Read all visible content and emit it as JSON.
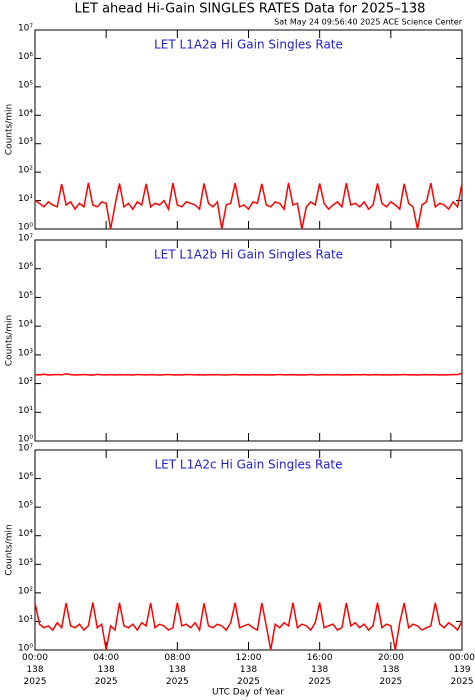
{
  "title": "LET ahead Hi-Gain SINGLES RATES Data for 2025–138",
  "subtitle": "Sat May 24 09:56:40 2025 ACE Science Center",
  "x_label": "UTC Day of Year",
  "chart_data": [
    {
      "type": "line",
      "title": "LET L1A2a Hi Gain Singles Rate",
      "y_label": "Counts/min",
      "log_scale": true,
      "xlim": [
        0,
        24
      ],
      "xticks": [
        0,
        4,
        8,
        12,
        16,
        20,
        24
      ],
      "ylim": [
        1,
        10000000
      ],
      "yticks": [
        {
          "value": 1,
          "label": "10⁰"
        },
        {
          "value": 10,
          "label": "10¹"
        },
        {
          "value": 100,
          "label": "10²"
        },
        {
          "value": 1000,
          "label": "10³"
        },
        {
          "value": 10000,
          "label": "10⁴"
        },
        {
          "value": 100000,
          "label": "10⁵"
        },
        {
          "value": 1000000,
          "label": "10⁶"
        },
        {
          "value": 10000000,
          "label": "10⁷"
        }
      ],
      "x": [
        0,
        0.25,
        0.5,
        0.75,
        1,
        1.25,
        1.5,
        1.75,
        2,
        2.25,
        2.5,
        2.75,
        3,
        3.25,
        3.5,
        3.75,
        4,
        4.25,
        4.5,
        4.75,
        5,
        5.25,
        5.5,
        5.75,
        6,
        6.25,
        6.5,
        6.75,
        7,
        7.25,
        7.5,
        7.75,
        8,
        8.25,
        8.5,
        8.75,
        9,
        9.25,
        9.5,
        9.75,
        10,
        10.25,
        10.5,
        10.75,
        11,
        11.25,
        11.5,
        11.75,
        12,
        12.25,
        12.5,
        12.75,
        13,
        13.25,
        13.5,
        13.75,
        14,
        14.25,
        14.5,
        14.75,
        15,
        15.25,
        15.5,
        15.75,
        16,
        16.25,
        16.5,
        16.75,
        17,
        17.25,
        17.5,
        17.75,
        18,
        18.25,
        18.5,
        18.75,
        19,
        19.25,
        19.5,
        19.75,
        20,
        20.25,
        20.5,
        20.75,
        21,
        21.25,
        21.5,
        21.75,
        22,
        22.25,
        22.5,
        22.75,
        23,
        23.25,
        23.5,
        23.75,
        24
      ],
      "series": [
        {
          "color": "#ff0000",
          "values": [
            10,
            8,
            6,
            9,
            7,
            6,
            38,
            7,
            9,
            5,
            8,
            6,
            42,
            7,
            6,
            9,
            8,
            1,
            7,
            40,
            6,
            8,
            5,
            9,
            7,
            39,
            6,
            8,
            7,
            10,
            5,
            41,
            7,
            6,
            9,
            8,
            7,
            5,
            40,
            8,
            6,
            9,
            1,
            7,
            8,
            41,
            6,
            7,
            5,
            9,
            8,
            39,
            7,
            6,
            9,
            8,
            5,
            42,
            7,
            8,
            1,
            6,
            9,
            7,
            40,
            8,
            5,
            7,
            9,
            6,
            41,
            7,
            8,
            6,
            9,
            5,
            7,
            40,
            8,
            6,
            9,
            7,
            5,
            39,
            8,
            6,
            1,
            7,
            9,
            41,
            6,
            8,
            7,
            5,
            9,
            6,
            40
          ]
        }
      ]
    },
    {
      "type": "line",
      "title": "LET L1A2b Hi Gain Singles Rate",
      "y_label": "Counts/min",
      "log_scale": true,
      "xlim": [
        0,
        24
      ],
      "xticks": [
        0,
        4,
        8,
        12,
        16,
        20,
        24
      ],
      "ylim": [
        1,
        10000000
      ],
      "yticks": [
        {
          "value": 1,
          "label": "10⁰"
        },
        {
          "value": 10,
          "label": "10¹"
        },
        {
          "value": 100,
          "label": "10²"
        },
        {
          "value": 1000,
          "label": "10³"
        },
        {
          "value": 10000,
          "label": "10⁴"
        },
        {
          "value": 100000,
          "label": "10⁵"
        },
        {
          "value": 1000000,
          "label": "10⁶"
        },
        {
          "value": 10000000,
          "label": "10⁷"
        }
      ],
      "x": [
        0,
        0.25,
        0.5,
        0.75,
        1,
        1.25,
        1.5,
        1.75,
        2,
        2.25,
        2.5,
        2.75,
        3,
        3.25,
        3.5,
        3.75,
        4,
        4.25,
        4.5,
        4.75,
        5,
        5.25,
        5.5,
        5.75,
        6,
        6.25,
        6.5,
        6.75,
        7,
        7.25,
        7.5,
        7.75,
        8,
        8.25,
        8.5,
        8.75,
        9,
        9.25,
        9.5,
        9.75,
        10,
        10.25,
        10.5,
        10.75,
        11,
        11.25,
        11.5,
        11.75,
        12,
        12.25,
        12.5,
        12.75,
        13,
        13.25,
        13.5,
        13.75,
        14,
        14.25,
        14.5,
        14.75,
        15,
        15.25,
        15.5,
        15.75,
        16,
        16.25,
        16.5,
        16.75,
        17,
        17.25,
        17.5,
        17.75,
        18,
        18.25,
        18.5,
        18.75,
        19,
        19.25,
        19.5,
        19.75,
        20,
        20.25,
        20.5,
        20.75,
        21,
        21.25,
        21.5,
        21.75,
        22,
        22.25,
        22.5,
        22.75,
        23,
        23.25,
        23.5,
        23.75,
        24
      ],
      "series": [
        {
          "color": "#ff0000",
          "values": [
            205,
            200,
            210,
            198,
            203,
            207,
            201,
            220,
            204,
            199,
            202,
            206,
            200,
            197,
            208,
            203,
            201,
            205,
            199,
            204,
            200,
            203,
            198,
            207,
            202,
            200,
            205,
            201,
            199,
            203,
            207,
            200,
            202,
            198,
            206,
            204,
            200,
            203,
            199,
            205,
            201,
            204,
            200,
            198,
            203,
            206,
            201,
            202,
            199,
            204,
            200,
            205,
            198,
            203,
            201,
            207,
            200,
            202,
            204,
            199,
            203,
            200,
            206,
            201,
            198,
            204,
            202,
            200,
            205,
            199,
            203,
            201,
            204,
            200,
            207,
            199,
            202,
            205,
            200,
            203,
            198,
            204,
            201,
            206,
            200,
            203,
            199,
            202,
            205,
            200,
            204,
            198,
            203,
            201,
            206,
            205,
            230
          ]
        }
      ]
    },
    {
      "type": "line",
      "title": "LET L1A2c Hi Gain Singles Rate",
      "y_label": "Counts/min",
      "log_scale": true,
      "xlim": [
        0,
        24
      ],
      "xticks": [
        {
          "value": 0,
          "label": "00:00\n138\n2025"
        },
        {
          "value": 4,
          "label": "04:00\n138\n2025"
        },
        {
          "value": 8,
          "label": "08:00\n138\n2025"
        },
        {
          "value": 12,
          "label": "12:00\n138\n2025"
        },
        {
          "value": 16,
          "label": "16:00\n138\n2025"
        },
        {
          "value": 20,
          "label": "20:00\n138\n2025"
        },
        {
          "value": 24,
          "label": "00:00\n139\n2025"
        }
      ],
      "ylim": [
        1,
        10000000
      ],
      "yticks": [
        {
          "value": 1,
          "label": "10⁰"
        },
        {
          "value": 10,
          "label": "10¹"
        },
        {
          "value": 100,
          "label": "10²"
        },
        {
          "value": 1000,
          "label": "10³"
        },
        {
          "value": 10000,
          "label": "10⁴"
        },
        {
          "value": 100000,
          "label": "10⁵"
        },
        {
          "value": 1000000,
          "label": "10⁶"
        },
        {
          "value": 10000000,
          "label": "10⁷"
        }
      ],
      "x": [
        0,
        0.25,
        0.5,
        0.75,
        1,
        1.25,
        1.5,
        1.75,
        2,
        2.25,
        2.5,
        2.75,
        3,
        3.25,
        3.5,
        3.75,
        4,
        4.25,
        4.5,
        4.75,
        5,
        5.25,
        5.5,
        5.75,
        6,
        6.25,
        6.5,
        6.75,
        7,
        7.25,
        7.5,
        7.75,
        8,
        8.25,
        8.5,
        8.75,
        9,
        9.25,
        9.5,
        9.75,
        10,
        10.25,
        10.5,
        10.75,
        11,
        11.25,
        11.5,
        11.75,
        12,
        12.25,
        12.5,
        12.75,
        13,
        13.25,
        13.5,
        13.75,
        14,
        14.25,
        14.5,
        14.75,
        15,
        15.25,
        15.5,
        15.75,
        16,
        16.25,
        16.5,
        16.75,
        17,
        17.25,
        17.5,
        17.75,
        18,
        18.25,
        18.5,
        18.75,
        19,
        19.25,
        19.5,
        19.75,
        20,
        20.25,
        20.5,
        20.75,
        21,
        21.25,
        21.5,
        21.75,
        22,
        22.25,
        22.5,
        22.75,
        23,
        23.25,
        23.5,
        23.75,
        24
      ],
      "series": [
        {
          "color": "#ff0000",
          "values": [
            45,
            8,
            6,
            7,
            5,
            9,
            6,
            44,
            7,
            6,
            8,
            5,
            7,
            46,
            6,
            8,
            1,
            7,
            5,
            45,
            7,
            6,
            8,
            5,
            9,
            7,
            44,
            6,
            8,
            7,
            5,
            6,
            45,
            7,
            8,
            6,
            9,
            5,
            43,
            7,
            6,
            8,
            7,
            5,
            9,
            45,
            6,
            7,
            8,
            6,
            5,
            44,
            7,
            1,
            8,
            6,
            9,
            7,
            45,
            6,
            8,
            7,
            5,
            9,
            46,
            6,
            7,
            8,
            5,
            6,
            44,
            7,
            9,
            6,
            8,
            5,
            7,
            45,
            6,
            8,
            7,
            1,
            9,
            44,
            6,
            8,
            7,
            5,
            6,
            7,
            45,
            8,
            6,
            9,
            7,
            5,
            10
          ]
        }
      ]
    }
  ]
}
